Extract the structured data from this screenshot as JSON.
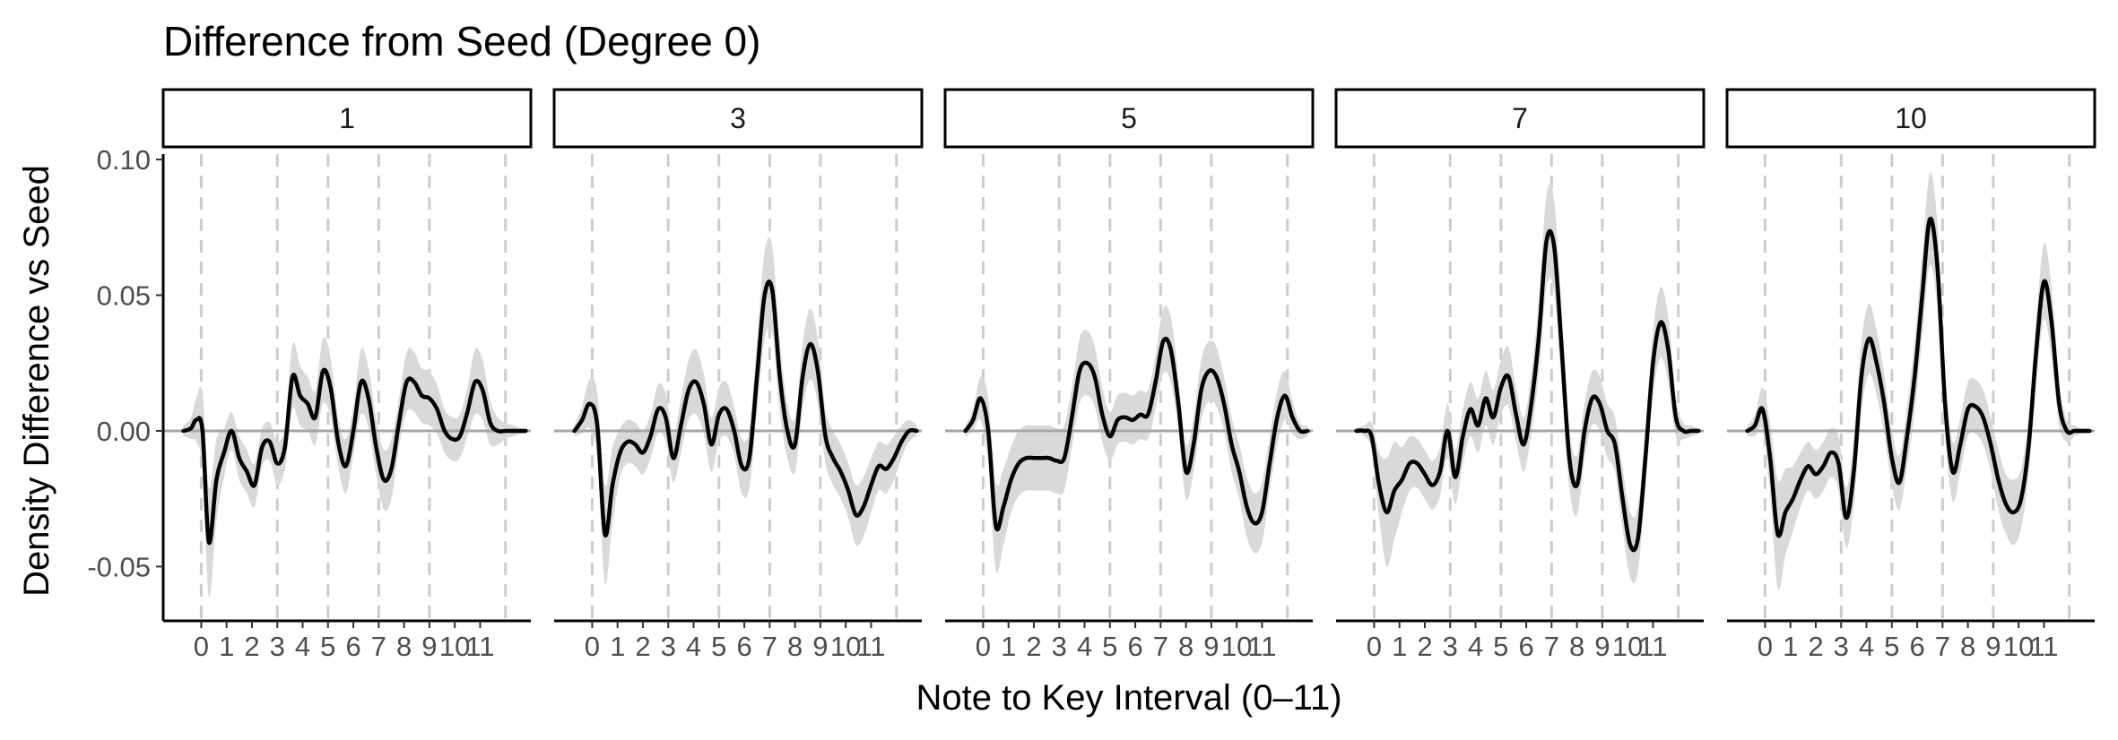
{
  "chart_data": {
    "type": "line",
    "title": "Difference from Seed (Degree 0)",
    "xlabel": "Note to Key Interval (0–11)",
    "ylabel": "Density Difference vs Seed",
    "xlim": [
      -1.5,
      13
    ],
    "ylim": [
      -0.07,
      0.102
    ],
    "x_ticks": [
      0,
      1,
      2,
      3,
      4,
      5,
      6,
      7,
      8,
      9,
      10,
      11
    ],
    "x_tick_labels": [
      "0",
      "1",
      "2",
      "3",
      "4",
      "5",
      "6",
      "7",
      "8",
      "9",
      "10",
      "11"
    ],
    "y_ticks": [
      -0.05,
      0,
      0.05,
      0.1
    ],
    "y_tick_labels": [
      "-0.05",
      "0.00",
      "0.05",
      "0.10"
    ],
    "reference_line_y": 0,
    "vertical_reference_x": [
      0,
      3,
      5,
      7,
      9,
      12
    ],
    "grid": false,
    "colors": {
      "line": "#000000",
      "ribbon": "#d9d9d9",
      "zero_line": "#a6a6a6",
      "vline": "#cccccc"
    },
    "panels": [
      {
        "label": "1",
        "x": [
          -0.7,
          -0.4,
          -0.2,
          0.05,
          0.3,
          0.6,
          0.9,
          1.2,
          1.5,
          1.8,
          2.1,
          2.4,
          2.7,
          3.0,
          3.3,
          3.6,
          3.9,
          4.2,
          4.5,
          4.8,
          5.1,
          5.4,
          5.7,
          6.0,
          6.3,
          6.6,
          6.9,
          7.2,
          7.5,
          7.8,
          8.1,
          8.4,
          8.7,
          9.0,
          9.3,
          9.6,
          9.9,
          10.2,
          10.5,
          10.8,
          11.1,
          11.4,
          11.7,
          12.0,
          12.3,
          12.6,
          12.8
        ],
        "y": [
          0.0,
          0.001,
          0.004,
          0.0,
          -0.041,
          -0.018,
          -0.008,
          0.0,
          -0.01,
          -0.015,
          -0.02,
          -0.006,
          -0.004,
          -0.012,
          -0.006,
          0.02,
          0.013,
          0.01,
          0.005,
          0.022,
          0.016,
          -0.004,
          -0.013,
          0.0,
          0.018,
          0.012,
          -0.006,
          -0.018,
          -0.014,
          0.003,
          0.018,
          0.018,
          0.013,
          0.012,
          0.008,
          0.0,
          -0.003,
          -0.002,
          0.007,
          0.018,
          0.015,
          0.003,
          0.0,
          0.0,
          0.0,
          0.0,
          0.0
        ],
        "ribbon_halfwidth": [
          0.002,
          0.004,
          0.008,
          0.014,
          0.02,
          0.015,
          0.009,
          0.007,
          0.008,
          0.008,
          0.008,
          0.007,
          0.007,
          0.008,
          0.008,
          0.012,
          0.011,
          0.01,
          0.01,
          0.012,
          0.011,
          0.009,
          0.01,
          0.009,
          0.012,
          0.011,
          0.01,
          0.011,
          0.011,
          0.009,
          0.011,
          0.011,
          0.01,
          0.01,
          0.009,
          0.008,
          0.008,
          0.008,
          0.009,
          0.012,
          0.011,
          0.008,
          0.005,
          0.003,
          0.002,
          0.001,
          0.001
        ]
      },
      {
        "label": "3",
        "x": [
          -0.7,
          -0.4,
          -0.1,
          0.2,
          0.5,
          0.8,
          1.1,
          1.4,
          1.7,
          2.0,
          2.3,
          2.6,
          2.9,
          3.2,
          3.5,
          3.8,
          4.1,
          4.4,
          4.7,
          5.0,
          5.3,
          5.6,
          5.9,
          6.2,
          6.5,
          6.8,
          7.1,
          7.4,
          7.7,
          8.0,
          8.3,
          8.6,
          8.9,
          9.2,
          9.5,
          9.8,
          10.1,
          10.4,
          10.7,
          11.0,
          11.3,
          11.6,
          11.9,
          12.2,
          12.5,
          12.8
        ],
        "y": [
          0.0,
          0.004,
          0.01,
          0.002,
          -0.038,
          -0.02,
          -0.008,
          -0.004,
          -0.005,
          -0.008,
          -0.002,
          0.008,
          0.005,
          -0.01,
          0.002,
          0.015,
          0.018,
          0.01,
          -0.005,
          0.006,
          0.008,
          0.0,
          -0.013,
          -0.01,
          0.02,
          0.05,
          0.052,
          0.02,
          0.0,
          -0.005,
          0.02,
          0.032,
          0.022,
          -0.002,
          -0.01,
          -0.015,
          -0.022,
          -0.031,
          -0.028,
          -0.02,
          -0.013,
          -0.014,
          -0.01,
          -0.004,
          0.0,
          0.0
        ],
        "ribbon_halfwidth": [
          0.002,
          0.005,
          0.009,
          0.012,
          0.018,
          0.014,
          0.009,
          0.008,
          0.008,
          0.008,
          0.008,
          0.009,
          0.009,
          0.009,
          0.01,
          0.011,
          0.012,
          0.011,
          0.01,
          0.01,
          0.01,
          0.009,
          0.01,
          0.011,
          0.013,
          0.016,
          0.016,
          0.013,
          0.01,
          0.01,
          0.012,
          0.013,
          0.012,
          0.01,
          0.01,
          0.01,
          0.01,
          0.011,
          0.011,
          0.01,
          0.009,
          0.009,
          0.008,
          0.006,
          0.004,
          0.002
        ]
      },
      {
        "label": "5",
        "x": [
          -0.7,
          -0.4,
          -0.1,
          0.2,
          0.5,
          0.8,
          1.1,
          1.4,
          1.7,
          2.0,
          2.3,
          2.6,
          2.9,
          3.2,
          3.5,
          3.8,
          4.1,
          4.4,
          4.7,
          5.0,
          5.3,
          5.6,
          5.9,
          6.2,
          6.5,
          6.8,
          7.1,
          7.4,
          7.7,
          8.0,
          8.3,
          8.6,
          8.9,
          9.2,
          9.5,
          9.8,
          10.1,
          10.4,
          10.7,
          11.0,
          11.3,
          11.6,
          11.9,
          12.2,
          12.5,
          12.8
        ],
        "y": [
          0.0,
          0.004,
          0.012,
          0.0,
          -0.035,
          -0.028,
          -0.018,
          -0.012,
          -0.01,
          -0.01,
          -0.01,
          -0.01,
          -0.011,
          -0.01,
          0.005,
          0.022,
          0.025,
          0.02,
          0.006,
          -0.002,
          0.004,
          0.005,
          0.004,
          0.006,
          0.006,
          0.018,
          0.033,
          0.03,
          0.01,
          -0.015,
          -0.005,
          0.015,
          0.022,
          0.02,
          0.01,
          -0.005,
          -0.015,
          -0.028,
          -0.034,
          -0.03,
          -0.012,
          0.005,
          0.013,
          0.005,
          0.0,
          0.0
        ],
        "ribbon_halfwidth": [
          0.002,
          0.004,
          0.008,
          0.012,
          0.016,
          0.014,
          0.012,
          0.012,
          0.012,
          0.012,
          0.012,
          0.012,
          0.012,
          0.012,
          0.011,
          0.012,
          0.012,
          0.011,
          0.01,
          0.009,
          0.009,
          0.009,
          0.009,
          0.009,
          0.009,
          0.01,
          0.012,
          0.012,
          0.01,
          0.01,
          0.01,
          0.011,
          0.011,
          0.011,
          0.01,
          0.01,
          0.01,
          0.011,
          0.011,
          0.011,
          0.01,
          0.01,
          0.009,
          0.006,
          0.003,
          0.002
        ]
      },
      {
        "label": "7",
        "x": [
          -0.7,
          -0.4,
          -0.1,
          0.2,
          0.5,
          0.8,
          1.1,
          1.4,
          1.7,
          2.0,
          2.3,
          2.6,
          2.9,
          3.2,
          3.5,
          3.8,
          4.1,
          4.4,
          4.7,
          5.0,
          5.3,
          5.6,
          5.9,
          6.2,
          6.5,
          6.8,
          7.1,
          7.4,
          7.7,
          8.0,
          8.3,
          8.6,
          8.9,
          9.2,
          9.5,
          9.8,
          10.1,
          10.4,
          10.7,
          11.0,
          11.3,
          11.6,
          11.9,
          12.2,
          12.5,
          12.8
        ],
        "y": [
          0.0,
          0.0,
          -0.002,
          -0.02,
          -0.03,
          -0.022,
          -0.018,
          -0.012,
          -0.012,
          -0.016,
          -0.02,
          -0.015,
          0.0,
          -0.017,
          -0.002,
          0.008,
          0.002,
          0.012,
          0.005,
          0.016,
          0.02,
          0.006,
          -0.005,
          0.01,
          0.035,
          0.07,
          0.068,
          0.03,
          -0.01,
          -0.02,
          0.0,
          0.012,
          0.01,
          0.0,
          -0.005,
          -0.025,
          -0.042,
          -0.04,
          -0.01,
          0.025,
          0.04,
          0.03,
          0.005,
          0.0,
          0.0,
          0.0
        ],
        "ribbon_halfwidth": [
          0.001,
          0.002,
          0.005,
          0.012,
          0.02,
          0.018,
          0.012,
          0.01,
          0.009,
          0.009,
          0.009,
          0.009,
          0.01,
          0.01,
          0.01,
          0.01,
          0.01,
          0.01,
          0.01,
          0.01,
          0.011,
          0.01,
          0.01,
          0.011,
          0.014,
          0.017,
          0.017,
          0.014,
          0.011,
          0.011,
          0.01,
          0.01,
          0.01,
          0.01,
          0.01,
          0.011,
          0.012,
          0.012,
          0.011,
          0.012,
          0.013,
          0.012,
          0.007,
          0.003,
          0.002,
          0.001
        ]
      },
      {
        "label": "10",
        "x": [
          -0.7,
          -0.4,
          -0.1,
          0.2,
          0.5,
          0.8,
          1.1,
          1.4,
          1.7,
          2.0,
          2.3,
          2.6,
          2.9,
          3.2,
          3.5,
          3.8,
          4.1,
          4.4,
          4.7,
          5.0,
          5.3,
          5.6,
          5.9,
          6.2,
          6.5,
          6.8,
          7.1,
          7.4,
          7.7,
          8.0,
          8.3,
          8.6,
          8.9,
          9.2,
          9.5,
          9.8,
          10.1,
          10.4,
          10.7,
          11.0,
          11.3,
          11.6,
          11.9,
          12.2,
          12.5,
          12.8
        ],
        "y": [
          0.0,
          0.002,
          0.008,
          -0.01,
          -0.038,
          -0.03,
          -0.025,
          -0.018,
          -0.013,
          -0.016,
          -0.013,
          -0.008,
          -0.012,
          -0.032,
          -0.015,
          0.02,
          0.034,
          0.025,
          0.01,
          -0.01,
          -0.019,
          -0.002,
          0.02,
          0.05,
          0.078,
          0.06,
          0.01,
          -0.015,
          -0.005,
          0.008,
          0.009,
          0.005,
          -0.005,
          -0.018,
          -0.027,
          -0.03,
          -0.025,
          -0.005,
          0.03,
          0.055,
          0.04,
          0.01,
          0.0,
          0.0,
          0.0,
          0.0
        ],
        "ribbon_halfwidth": [
          0.002,
          0.004,
          0.008,
          0.013,
          0.02,
          0.016,
          0.012,
          0.01,
          0.009,
          0.009,
          0.009,
          0.009,
          0.01,
          0.011,
          0.012,
          0.013,
          0.013,
          0.012,
          0.011,
          0.01,
          0.01,
          0.011,
          0.013,
          0.015,
          0.017,
          0.016,
          0.012,
          0.011,
          0.01,
          0.01,
          0.01,
          0.01,
          0.01,
          0.011,
          0.011,
          0.012,
          0.011,
          0.011,
          0.012,
          0.014,
          0.013,
          0.008,
          0.004,
          0.002,
          0.001,
          0.001
        ]
      }
    ]
  }
}
